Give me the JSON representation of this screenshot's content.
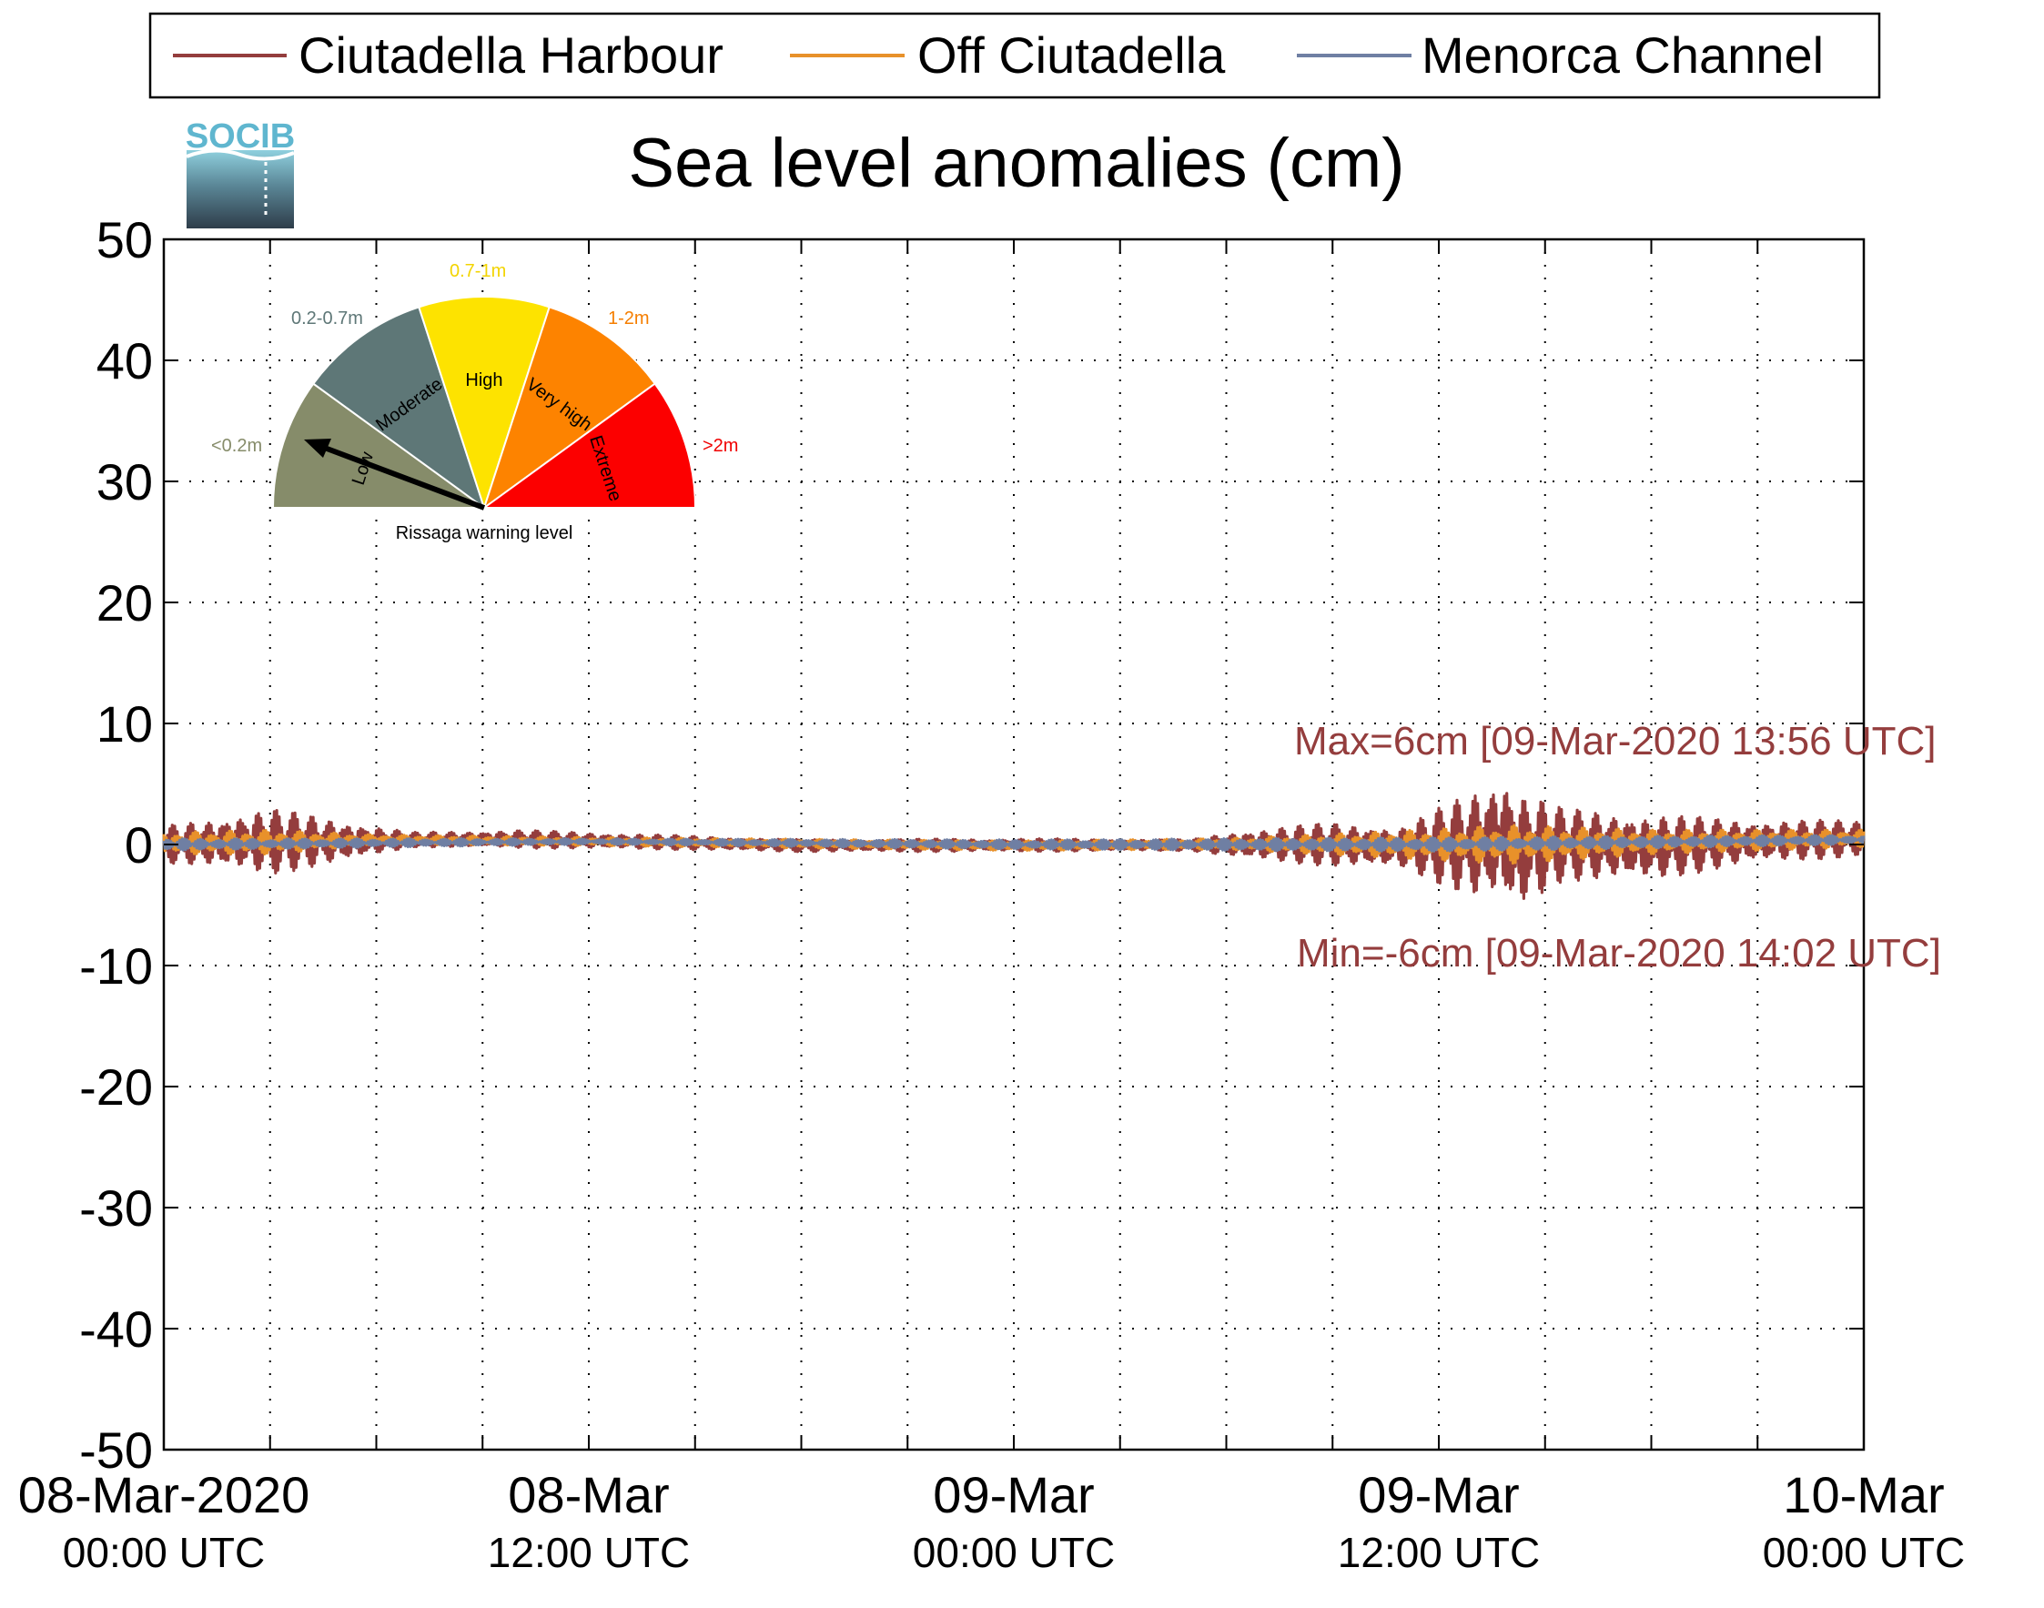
{
  "chart_data": {
    "type": "line",
    "title": "Sea level anomalies (cm)",
    "logo_text": "SOCIB",
    "xlabel": "",
    "ylabel": "",
    "x_range": [
      "2020-03-08 00:00",
      "2020-03-10 00:00"
    ],
    "ylim": [
      -50,
      50
    ],
    "y_ticks": [
      50,
      40,
      30,
      20,
      10,
      0,
      -10,
      -20,
      -30,
      -40,
      -50
    ],
    "x_tick_labels": [
      {
        "x": "2020-03-08 00:00",
        "line1": "08-Mar-2020",
        "line2": "00:00 UTC"
      },
      {
        "x": "2020-03-08 12:00",
        "line1": "08-Mar",
        "line2": "12:00 UTC"
      },
      {
        "x": "2020-03-09 00:00",
        "line1": "09-Mar",
        "line2": "00:00 UTC"
      },
      {
        "x": "2020-03-09 12:00",
        "line1": "09-Mar",
        "line2": "12:00 UTC"
      },
      {
        "x": "2020-03-10 00:00",
        "line1": "10-Mar",
        "line2": "00:00 UTC"
      }
    ],
    "grid": true,
    "legend_position": "top",
    "series": [
      {
        "name": "Ciutadella Harbour",
        "color": "#943d3d",
        "envelope": [
          {
            "x": "2020-03-08 00:00",
            "y_max": 1.5,
            "y_min": -1.5
          },
          {
            "x": "2020-03-08 01:00",
            "y_max": 2.0,
            "y_min": -1.8
          },
          {
            "x": "2020-03-08 03:00",
            "y_max": 3.0,
            "y_min": -2.5
          },
          {
            "x": "2020-03-08 05:00",
            "y_max": 2.0,
            "y_min": -1.5
          },
          {
            "x": "2020-03-08 07:00",
            "y_max": 1.0,
            "y_min": -0.2
          },
          {
            "x": "2020-03-08 10:00",
            "y_max": 1.2,
            "y_min": -0.3
          },
          {
            "x": "2020-03-08 14:00",
            "y_max": 0.8,
            "y_min": -0.4
          },
          {
            "x": "2020-03-08 18:00",
            "y_max": 0.4,
            "y_min": -0.6
          },
          {
            "x": "2020-03-09 00:00",
            "y_max": 0.5,
            "y_min": -0.6
          },
          {
            "x": "2020-03-09 05:00",
            "y_max": 0.4,
            "y_min": -0.5
          },
          {
            "x": "2020-03-09 06:30",
            "y_max": 1.2,
            "y_min": -1.2
          },
          {
            "x": "2020-03-09 09:00",
            "y_max": 1.8,
            "y_min": -1.8
          },
          {
            "x": "2020-03-09 11:00",
            "y_max": 1.5,
            "y_min": -2.0
          },
          {
            "x": "2020-03-09 13:00",
            "y_max": 4.5,
            "y_min": -4.5
          },
          {
            "x": "2020-03-09 13:56",
            "y_max": 6.0,
            "y_min": -5.0
          },
          {
            "x": "2020-03-09 14:02",
            "y_max": 5.0,
            "y_min": -6.0
          },
          {
            "x": "2020-03-09 15:30",
            "y_max": 3.0,
            "y_min": -3.0
          },
          {
            "x": "2020-03-09 18:00",
            "y_max": 2.5,
            "y_min": -3.0
          },
          {
            "x": "2020-03-09 21:00",
            "y_max": 2.0,
            "y_min": -1.5
          },
          {
            "x": "2020-03-10 00:00",
            "y_max": 2.0,
            "y_min": -1.0
          }
        ]
      },
      {
        "name": "Off Ciutadella",
        "color": "#e8912a",
        "envelope": [
          {
            "x": "2020-03-08 00:00",
            "y_max": 1.0,
            "y_min": -0.8
          },
          {
            "x": "2020-03-08 03:00",
            "y_max": 1.2,
            "y_min": -0.8
          },
          {
            "x": "2020-03-08 06:00",
            "y_max": 0.8,
            "y_min": 0.0
          },
          {
            "x": "2020-03-08 12:00",
            "y_max": 0.6,
            "y_min": -0.1
          },
          {
            "x": "2020-03-09 00:00",
            "y_max": 0.3,
            "y_min": -0.5
          },
          {
            "x": "2020-03-09 06:00",
            "y_max": 0.5,
            "y_min": -0.4
          },
          {
            "x": "2020-03-09 10:00",
            "y_max": 1.0,
            "y_min": -1.0
          },
          {
            "x": "2020-03-09 14:00",
            "y_max": 1.6,
            "y_min": -1.6
          },
          {
            "x": "2020-03-09 18:00",
            "y_max": 1.2,
            "y_min": -0.8
          },
          {
            "x": "2020-03-10 00:00",
            "y_max": 1.2,
            "y_min": -0.2
          }
        ]
      },
      {
        "name": "Menorca Channel",
        "color": "#6f7fa3",
        "envelope": [
          {
            "x": "2020-03-08 00:00",
            "y_max": 0.5,
            "y_min": -0.5
          },
          {
            "x": "2020-03-08 12:00",
            "y_max": 0.5,
            "y_min": 0.0
          },
          {
            "x": "2020-03-09 00:00",
            "y_max": 0.4,
            "y_min": -0.4
          },
          {
            "x": "2020-03-09 12:00",
            "y_max": 0.6,
            "y_min": -0.6
          },
          {
            "x": "2020-03-10 00:00",
            "y_max": 0.8,
            "y_min": 0.0
          }
        ]
      }
    ],
    "annotations": [
      {
        "text": "Max=6cm [09-Mar-2020 13:56 UTC]",
        "color": "#943d3d"
      },
      {
        "text": "Min=-6cm [09-Mar-2020 14:02 UTC]",
        "color": "#943d3d"
      }
    ],
    "gauge": {
      "title": "Rissaga warning level",
      "needle_level": "Low",
      "sectors": [
        {
          "label": "Low",
          "range": "<0.2m",
          "color": "#868c6a",
          "range_color": "#868c6a"
        },
        {
          "label": "Moderate",
          "range": "0.2-0.7m",
          "color": "#5e7777",
          "range_color": "#5e7777"
        },
        {
          "label": "High",
          "range": "0.7-1m",
          "color": "#fde300",
          "range_color": "#f3d400"
        },
        {
          "label": "Very high",
          "range": "1-2m",
          "color": "#fd8300",
          "range_color": "#f57e00"
        },
        {
          "label": "Extreme",
          "range": ">2m",
          "color": "#fc0000",
          "range_color": "#f00000"
        }
      ]
    }
  }
}
